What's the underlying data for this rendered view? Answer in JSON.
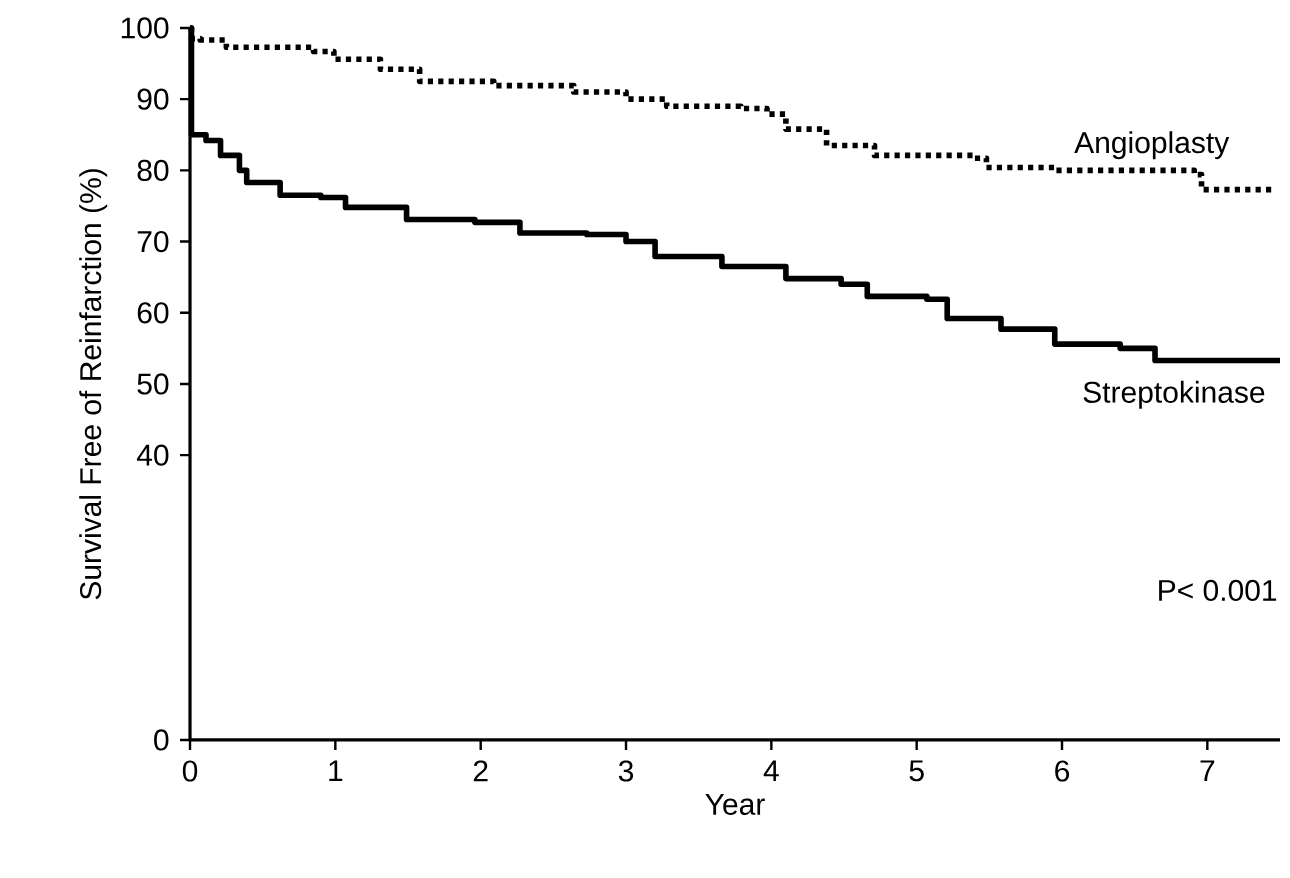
{
  "chart_data": {
    "type": "step",
    "xlabel": "Year",
    "ylabel": "Survival Free of Reinfarction (%)",
    "xlim": [
      0,
      7.5
    ],
    "xticks": [
      0,
      1,
      2,
      3,
      4,
      5,
      6,
      7
    ],
    "ylim": [
      0,
      100
    ],
    "yticks": [
      0,
      40,
      50,
      60,
      70,
      80,
      90,
      100
    ],
    "marker": "none",
    "annotations": [
      "P< 0.001"
    ],
    "series": [
      {
        "name": "Angioplasty",
        "color": "#000000",
        "line_style": "dotted",
        "x": [
          0,
          0.01,
          0.07,
          0.25,
          0.85,
          0.99,
          1.31,
          1.58,
          2.09,
          2.64,
          3.0,
          3.28,
          3.79,
          3.97,
          4.1,
          4.38,
          4.71,
          5.4,
          5.48,
          5.95,
          6.91,
          6.96,
          7.47
        ],
        "values": [
          100,
          98.5,
          98.3,
          97.3,
          96.7,
          95.6,
          94.2,
          92.5,
          91.9,
          91.0,
          90,
          89,
          88.7,
          87.9,
          85.8,
          83.5,
          82.1,
          81.7,
          80.4,
          80,
          79.4,
          77.3,
          77.3
        ]
      },
      {
        "name": "Streptokinase",
        "color": "#000000",
        "line_style": "solid",
        "x": [
          0,
          0.01,
          0.11,
          0.21,
          0.34,
          0.39,
          0.62,
          0.9,
          1.07,
          1.49,
          1.96,
          2.27,
          2.73,
          3.0,
          3.2,
          3.66,
          4.1,
          4.48,
          4.66,
          5.07,
          5.21,
          5.58,
          5.95,
          6.4,
          6.64,
          7.5
        ],
        "values": [
          100,
          85,
          84.2,
          82.1,
          80,
          78.3,
          76.5,
          76.2,
          74.8,
          73.1,
          72.7,
          71.2,
          71,
          70,
          67.9,
          66.5,
          64.8,
          64,
          62.3,
          61.9,
          59.2,
          57.7,
          55.6,
          55,
          53.3,
          53.3
        ]
      }
    ]
  }
}
